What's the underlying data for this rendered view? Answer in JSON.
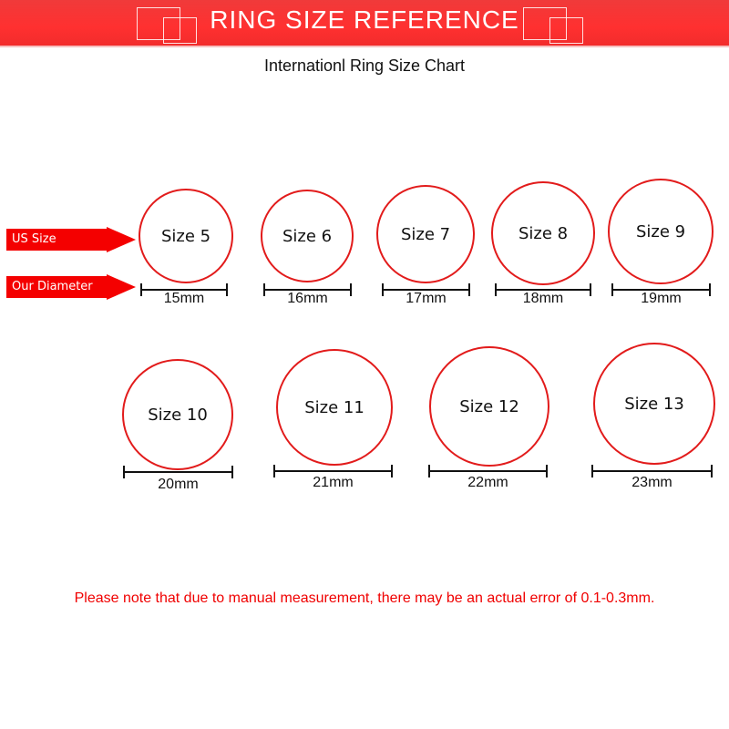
{
  "banner": {
    "title": "RING SIZE REFERENCE",
    "color": "#ff3030"
  },
  "subtitle": "Internationl Ring Size Chart",
  "legend": {
    "us_size": "US Size",
    "our_diameter": "Our Diameter"
  },
  "rings": [
    {
      "size": "Size 5",
      "diameter": "15mm"
    },
    {
      "size": "Size 6",
      "diameter": "16mm"
    },
    {
      "size": "Size 7",
      "diameter": "17mm"
    },
    {
      "size": "Size 8",
      "diameter": "18mm"
    },
    {
      "size": "Size 9",
      "diameter": "19mm"
    },
    {
      "size": "Size 10",
      "diameter": "20mm"
    },
    {
      "size": "Size 11",
      "diameter": "21mm"
    },
    {
      "size": "Size 12",
      "diameter": "22mm"
    },
    {
      "size": "Size 13",
      "diameter": "23mm"
    }
  ],
  "note": "Please note that due to manual measurement, there may be an actual error of 0.1-0.3mm.",
  "ring_color": "#e21b1b"
}
